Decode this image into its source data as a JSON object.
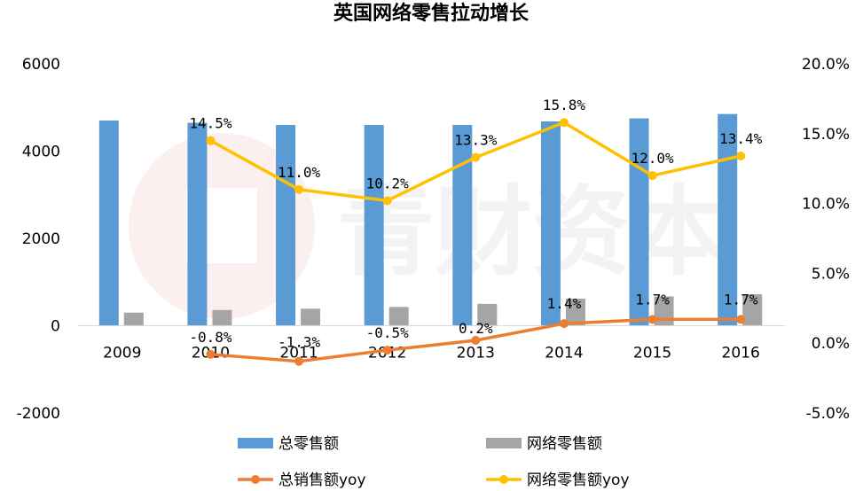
{
  "chart_data": {
    "type": "bar",
    "title": "英国网络零售拉动增长",
    "categories": [
      "2009",
      "2010",
      "2011",
      "2012",
      "2013",
      "2014",
      "2015",
      "2016"
    ],
    "y_left": {
      "min": -2000,
      "max": 6000,
      "ticks": [
        "6000",
        "4000",
        "2000",
        "0",
        "-2000"
      ]
    },
    "y_right": {
      "min": -5,
      "max": 20,
      "ticks": [
        "20.0%",
        "15.0%",
        "10.0%",
        "5.0%",
        "0.0%",
        "-5.0%"
      ]
    },
    "bar_series": [
      {
        "name": "总零售额",
        "color": "#5B9BD5",
        "values": [
          4700,
          4650,
          4600,
          4600,
          4600,
          4680,
          4750,
          4850
        ]
      },
      {
        "name": "网络零售额",
        "color": "#A5A5A5",
        "values": [
          300,
          360,
          390,
          430,
          500,
          620,
          670,
          720
        ]
      }
    ],
    "line_series": [
      {
        "name": "总销售额yoy",
        "color": "#ED7D31",
        "values": [
          null,
          -0.8,
          -1.3,
          -0.5,
          0.2,
          1.4,
          1.7,
          1.7
        ],
        "labels": [
          "",
          "-0.8%",
          "-1.3%",
          "-0.5%",
          "0.2%",
          "1.4%",
          "1.7%",
          "1.7%"
        ]
      },
      {
        "name": "网络零售额yoy",
        "color": "#FFC000",
        "values": [
          null,
          14.5,
          11.0,
          10.2,
          13.3,
          15.8,
          12.0,
          13.4
        ],
        "labels": [
          "",
          "14.5%",
          "11.0%",
          "10.2%",
          "13.3%",
          "15.8%",
          "12.0%",
          "13.4%"
        ]
      }
    ],
    "legend_position": "bottom",
    "grid": false
  },
  "watermark": {
    "text": "青财资本"
  }
}
